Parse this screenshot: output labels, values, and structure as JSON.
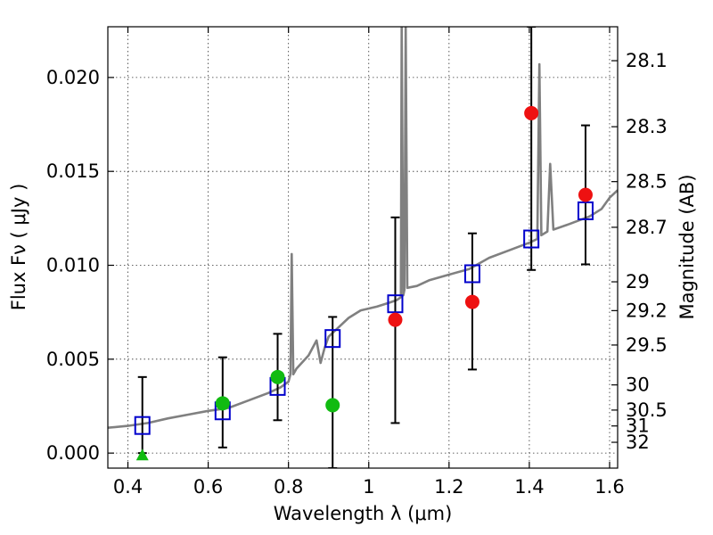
{
  "chart_data": {
    "type": "scatter",
    "title": "",
    "xlabel": "Wavelength  λ (μm)",
    "ylabel": "Flux  Fν  ( μJy )",
    "y2label": "Magnitude (AB)",
    "xlim": [
      0.35,
      1.62
    ],
    "ylim": [
      -0.0008,
      0.0227
    ],
    "grid": true,
    "x_ticks": [
      {
        "value": 0.4,
        "label": "0.4"
      },
      {
        "value": 0.6,
        "label": "0.6"
      },
      {
        "value": 0.8,
        "label": "0.8"
      },
      {
        "value": 1.0,
        "label": "1"
      },
      {
        "value": 1.2,
        "label": "1.2"
      },
      {
        "value": 1.4,
        "label": "1.4"
      },
      {
        "value": 1.6,
        "label": "1.6"
      }
    ],
    "y_ticks": [
      {
        "value": 0.0,
        "label": "0.000"
      },
      {
        "value": 0.005,
        "label": "0.005"
      },
      {
        "value": 0.01,
        "label": "0.010"
      },
      {
        "value": 0.015,
        "label": "0.015"
      },
      {
        "value": 0.02,
        "label": "0.020"
      }
    ],
    "y2_ticks": [
      {
        "value": 28.1,
        "label": "28.1"
      },
      {
        "value": 28.3,
        "label": "28.3"
      },
      {
        "value": 28.5,
        "label": "28.5"
      },
      {
        "value": 28.7,
        "label": "28.7"
      },
      {
        "value": 29.0,
        "label": "29"
      },
      {
        "value": 29.2,
        "label": "29.2"
      },
      {
        "value": 29.5,
        "label": "29.5"
      },
      {
        "value": 30.0,
        "label": "30"
      },
      {
        "value": 30.5,
        "label": "30.5"
      },
      {
        "value": 31.0,
        "label": "31"
      },
      {
        "value": 32.0,
        "label": "32"
      }
    ],
    "colors": {
      "model": "#808080",
      "photometry_box": "#0000cc",
      "error_bar": "#000000",
      "red_points": "#ee1111",
      "green_points": "#11bb11"
    },
    "model_spectrum": [
      [
        0.35,
        0.00135
      ],
      [
        0.4,
        0.00145
      ],
      [
        0.45,
        0.0016
      ],
      [
        0.5,
        0.00185
      ],
      [
        0.55,
        0.00205
      ],
      [
        0.6,
        0.00225
      ],
      [
        0.65,
        0.0024
      ],
      [
        0.7,
        0.0028
      ],
      [
        0.75,
        0.0032
      ],
      [
        0.78,
        0.0035
      ],
      [
        0.8,
        0.0038
      ],
      [
        0.805,
        0.0042
      ],
      [
        0.808,
        0.0106
      ],
      [
        0.812,
        0.0042
      ],
      [
        0.82,
        0.0045
      ],
      [
        0.85,
        0.0052
      ],
      [
        0.87,
        0.006
      ],
      [
        0.88,
        0.0048
      ],
      [
        0.89,
        0.0056
      ],
      [
        0.9,
        0.0062
      ],
      [
        0.93,
        0.0068
      ],
      [
        0.95,
        0.0072
      ],
      [
        0.98,
        0.0076
      ],
      [
        1.0,
        0.0077
      ],
      [
        1.02,
        0.0078
      ],
      [
        1.05,
        0.008
      ],
      [
        1.07,
        0.00815
      ],
      [
        1.08,
        0.0083
      ],
      [
        1.082,
        0.0227
      ],
      [
        1.086,
        0.0084
      ],
      [
        1.089,
        0.0087
      ],
      [
        1.092,
        0.0227
      ],
      [
        1.096,
        0.0088
      ],
      [
        1.12,
        0.0089
      ],
      [
        1.15,
        0.0092
      ],
      [
        1.2,
        0.0095
      ],
      [
        1.25,
        0.0098
      ],
      [
        1.3,
        0.0104
      ],
      [
        1.35,
        0.0108
      ],
      [
        1.4,
        0.0112
      ],
      [
        1.42,
        0.0114
      ],
      [
        1.425,
        0.0207
      ],
      [
        1.43,
        0.0116
      ],
      [
        1.445,
        0.0118
      ],
      [
        1.452,
        0.0154
      ],
      [
        1.46,
        0.0119
      ],
      [
        1.5,
        0.0122
      ],
      [
        1.55,
        0.0126
      ],
      [
        1.58,
        0.013
      ],
      [
        1.6,
        0.0136
      ],
      [
        1.62,
        0.014
      ]
    ],
    "series": [
      {
        "marker": "square-open",
        "points": [
          {
            "x": 0.436,
            "y": 0.00147,
            "err_lo": 0.0,
            "err_hi": 0.00405
          },
          {
            "x": 0.636,
            "y": 0.00225,
            "err_lo": 0.0003,
            "err_hi": 0.0051
          },
          {
            "x": 0.773,
            "y": 0.00355,
            "err_lo": 0.00175,
            "err_hi": 0.00635
          },
          {
            "x": 0.91,
            "y": 0.0061,
            "err_lo": -0.0008,
            "err_hi": 0.00725
          },
          {
            "x": 1.066,
            "y": 0.00795,
            "err_lo": 0.0016,
            "err_hi": 0.01255
          },
          {
            "x": 1.258,
            "y": 0.00955,
            "err_lo": 0.00445,
            "err_hi": 0.0117
          },
          {
            "x": 1.405,
            "y": 0.0114,
            "err_lo": 0.00975,
            "err_hi": 0.0227
          },
          {
            "x": 1.54,
            "y": 0.0129,
            "err_lo": 0.01005,
            "err_hi": 0.01745
          }
        ]
      },
      {
        "marker": "circle-red",
        "points": [
          {
            "x": 1.066,
            "y": 0.0071
          },
          {
            "x": 1.258,
            "y": 0.00805
          },
          {
            "x": 1.405,
            "y": 0.0181
          },
          {
            "x": 1.54,
            "y": 0.01375
          }
        ]
      },
      {
        "marker": "circle-green",
        "points": [
          {
            "x": 0.636,
            "y": 0.00265
          },
          {
            "x": 0.773,
            "y": 0.00405
          },
          {
            "x": 0.91,
            "y": 0.00255
          }
        ]
      },
      {
        "marker": "triangle-green",
        "points": [
          {
            "x": 0.436,
            "y": -0.0001
          }
        ]
      }
    ]
  }
}
